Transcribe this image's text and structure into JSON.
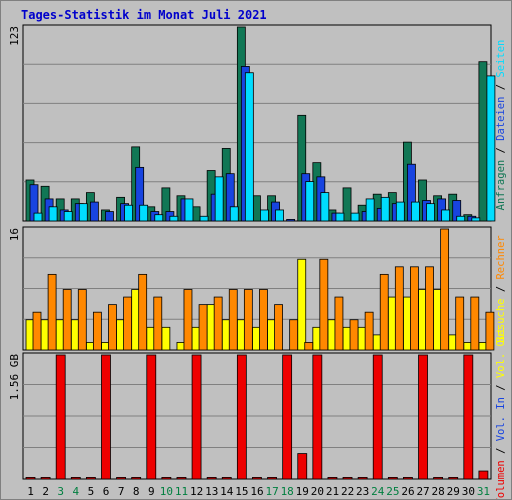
{
  "title": "Tages-Statistik im Monat Juli 2021",
  "chart_data": [
    {
      "type": "bar",
      "name": "hits-panel",
      "ymax_label": "123",
      "ylim": [
        0,
        123
      ],
      "days": [
        "1",
        "2",
        "3",
        "4",
        "5",
        "6",
        "7",
        "8",
        "9",
        "10",
        "11",
        "12",
        "13",
        "14",
        "15",
        "16",
        "17",
        "18",
        "19",
        "20",
        "21",
        "22",
        "23",
        "24",
        "25",
        "26",
        "27",
        "28",
        "29",
        "30",
        "31"
      ],
      "weekend_days": [
        "3",
        "4",
        "10",
        "11",
        "17",
        "18",
        "24",
        "25",
        "31"
      ],
      "legend": [
        {
          "label": "Anfragen",
          "color": "#117755"
        },
        {
          "label": "Dateien",
          "color": "#1844e0"
        },
        {
          "label": "Seiten",
          "color": "#00ddff"
        }
      ],
      "series": [
        {
          "name": "Anfragen",
          "color": "#117755",
          "values": [
            26,
            22,
            14,
            14,
            18,
            7,
            15,
            47,
            9,
            21,
            16,
            9,
            32,
            46,
            123,
            16,
            16,
            0,
            67,
            37,
            7,
            21,
            10,
            17,
            18,
            50,
            26,
            16,
            17,
            4,
            101
          ]
        },
        {
          "name": "Dateien",
          "color": "#1844e0",
          "values": [
            23,
            14,
            7,
            11,
            12,
            6,
            11,
            34,
            6,
            6,
            14,
            0,
            17,
            30,
            98,
            0,
            12,
            1,
            30,
            28,
            5,
            0,
            6,
            8,
            11,
            36,
            13,
            14,
            13,
            3,
            0
          ]
        },
        {
          "name": "Seiten",
          "color": "#00ddff",
          "values": [
            5,
            9,
            6,
            11,
            0,
            0,
            10,
            10,
            4,
            3,
            14,
            3,
            28,
            9,
            94,
            7,
            7,
            0,
            25,
            18,
            5,
            5,
            14,
            15,
            12,
            12,
            11,
            7,
            3,
            2,
            92
          ]
        }
      ]
    },
    {
      "type": "bar",
      "name": "visits-panel",
      "ymax_label": "16",
      "ylim": [
        0,
        16
      ],
      "legend": [
        {
          "label": "Besuche",
          "color": "#ffff00"
        },
        {
          "label": "Rechner",
          "color": "#ff8800"
        }
      ],
      "series": [
        {
          "name": "Besuche",
          "color": "#ffff00",
          "values": [
            4,
            4,
            4,
            4,
            1,
            1,
            4,
            8,
            3,
            3,
            1,
            3,
            6,
            4,
            4,
            3,
            4,
            0,
            12,
            3,
            4,
            3,
            3,
            2,
            7,
            7,
            8,
            8,
            2,
            1,
            1
          ]
        },
        {
          "name": "Rechner",
          "color": "#ff8800",
          "values": [
            5,
            10,
            8,
            8,
            5,
            6,
            7,
            10,
            7,
            0,
            8,
            6,
            7,
            8,
            8,
            8,
            6,
            4,
            1,
            12,
            7,
            4,
            5,
            10,
            11,
            11,
            11,
            16,
            7,
            7,
            5
          ]
        }
      ]
    },
    {
      "type": "bar",
      "name": "volume-panel",
      "ymax_label": "1.56 GB",
      "ylim": [
        0,
        1.56
      ],
      "legend": [
        {
          "label": "Volumen",
          "color": "#ee0000"
        },
        {
          "label": "Vol. In",
          "color": "#1844e0"
        },
        {
          "label": "Vol. Out",
          "color": "#ffff00"
        }
      ],
      "series": [
        {
          "name": "Volumen",
          "color": "#ee0000",
          "values": [
            0.02,
            0.02,
            1.56,
            0.02,
            0.02,
            1.56,
            0.02,
            0.02,
            1.56,
            0.02,
            0.02,
            1.56,
            0.02,
            0.02,
            1.56,
            0.02,
            0.02,
            1.56,
            0.32,
            1.56,
            0.02,
            0.02,
            0.02,
            1.56,
            0.02,
            0.02,
            1.56,
            0.02,
            0.02,
            1.56,
            0.1
          ]
        }
      ]
    }
  ],
  "colors": {
    "background": "#c0c0c0",
    "title": "#0000cc",
    "gridline": "#808080",
    "weekday_label": "#000000",
    "weekend_label": "#007f3f"
  }
}
